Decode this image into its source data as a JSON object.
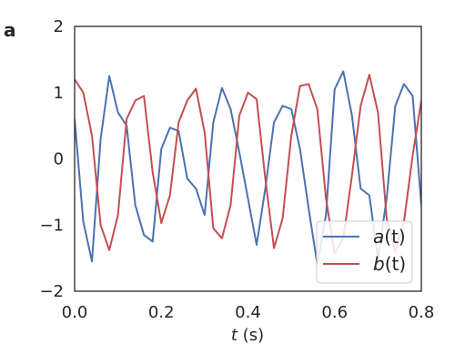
{
  "panel_label": "a",
  "chart_data": {
    "type": "line",
    "xlabel_var": "t",
    "xlabel_unit": " (s)",
    "xlim": [
      0.0,
      0.8
    ],
    "ylim": [
      -2,
      2
    ],
    "x_ticks": [
      "0.0",
      "0.2",
      "0.4",
      "0.6",
      "0.8"
    ],
    "x_tick_values": [
      0.0,
      0.2,
      0.4,
      0.6,
      0.8
    ],
    "y_ticks": [
      "−2",
      "−1",
      "0",
      "1",
      "2"
    ],
    "y_tick_values": [
      -2,
      -1,
      0,
      1,
      2
    ],
    "grid": false,
    "legend_position": "lower-right",
    "series": [
      {
        "name": "a(t)",
        "name_base": "a",
        "name_arg": "(t)",
        "color": "#4c72b0",
        "x": [
          0.0,
          0.02,
          0.04,
          0.06,
          0.08,
          0.1,
          0.12,
          0.14,
          0.16,
          0.18,
          0.2,
          0.22,
          0.24,
          0.26,
          0.28,
          0.3,
          0.32,
          0.34,
          0.36,
          0.38,
          0.4,
          0.42,
          0.44,
          0.46,
          0.48,
          0.5,
          0.52,
          0.54,
          0.56,
          0.58,
          0.6,
          0.62,
          0.64,
          0.66,
          0.68,
          0.7,
          0.72,
          0.74,
          0.76,
          0.78,
          0.8
        ],
        "y": [
          0.6,
          -0.95,
          -1.55,
          0.3,
          1.25,
          0.7,
          0.5,
          -0.7,
          -1.15,
          -1.25,
          0.15,
          0.47,
          0.42,
          -0.3,
          -0.45,
          -0.85,
          0.55,
          1.07,
          0.75,
          0.1,
          -0.6,
          -1.3,
          -0.45,
          0.55,
          0.8,
          0.75,
          0.15,
          -0.75,
          -1.6,
          -0.85,
          1.05,
          1.32,
          0.65,
          -0.45,
          -0.55,
          -1.5,
          -0.6,
          0.8,
          1.13,
          0.95,
          -0.7
        ]
      },
      {
        "name": "b(t)",
        "name_base": "b",
        "name_arg": "(t)",
        "color": "#c44e52",
        "x": [
          0.0,
          0.02,
          0.04,
          0.06,
          0.08,
          0.1,
          0.12,
          0.14,
          0.16,
          0.18,
          0.2,
          0.22,
          0.24,
          0.26,
          0.28,
          0.3,
          0.32,
          0.34,
          0.36,
          0.38,
          0.4,
          0.42,
          0.44,
          0.46,
          0.48,
          0.5,
          0.52,
          0.54,
          0.56,
          0.58,
          0.6,
          0.62,
          0.64,
          0.66,
          0.68,
          0.7,
          0.72,
          0.74,
          0.76,
          0.78,
          0.8
        ],
        "y": [
          1.2,
          1.0,
          0.35,
          -1.0,
          -1.38,
          -0.85,
          0.6,
          0.88,
          0.95,
          -0.2,
          -0.97,
          -0.55,
          0.55,
          0.88,
          1.06,
          0.4,
          -1.05,
          -1.2,
          -0.7,
          0.65,
          1.0,
          0.9,
          -0.3,
          -1.35,
          -0.9,
          0.35,
          1.1,
          1.13,
          0.75,
          -0.6,
          -1.43,
          -1.2,
          -0.25,
          0.8,
          1.27,
          0.7,
          -0.9,
          -1.4,
          -0.95,
          0.05,
          0.88
        ]
      }
    ]
  }
}
